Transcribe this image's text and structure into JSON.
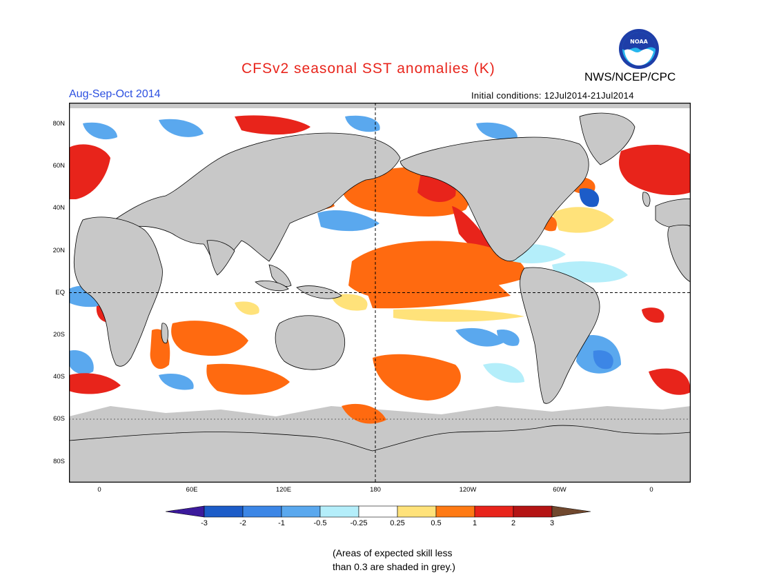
{
  "header": {
    "title": "CFSv2 seasonal SST anomalies (K)",
    "organization": "NWS/NCEP/CPC",
    "season": "Aug-Sep-Oct 2014",
    "initial_conditions": "Initial conditions: 12Jul2014-21Jul2014"
  },
  "logo": {
    "text": "NOAA",
    "icon": "noaa-logo-icon"
  },
  "map": {
    "lat_labels": [
      "80N",
      "60N",
      "40N",
      "20N",
      "EQ",
      "20S",
      "40S",
      "60S",
      "80S"
    ],
    "lon_labels": [
      "0",
      "60E",
      "120E",
      "180",
      "120W",
      "60W",
      "0"
    ]
  },
  "colorbar": {
    "labels": [
      "-3",
      "-2",
      "-1",
      "-0.5",
      "-0.25",
      "0.25",
      "0.5",
      "1",
      "2",
      "3"
    ],
    "colors": [
      "#3c1a9c",
      "#1c5cc8",
      "#3c86e6",
      "#5aa8ee",
      "#b4eefa",
      "#ffffff",
      "#ffe27a",
      "#ff7a14",
      "#e8241b",
      "#b41414",
      "#70482e"
    ]
  },
  "colors": {
    "land": "#c8c8c8",
    "warm_strong": "#b41414",
    "warm": "#e8241b",
    "warm_mid": "#ff6a10",
    "warm_weak": "#ffe27a",
    "cool_weak": "#b4eefa",
    "cool_mid": "#5aa8ee",
    "cool": "#3c86e6",
    "cool_strong": "#1c5cc8"
  },
  "footnote": {
    "line1": "(Areas of expected skill less",
    "line2": "than 0.3 are shaded in grey.)"
  }
}
